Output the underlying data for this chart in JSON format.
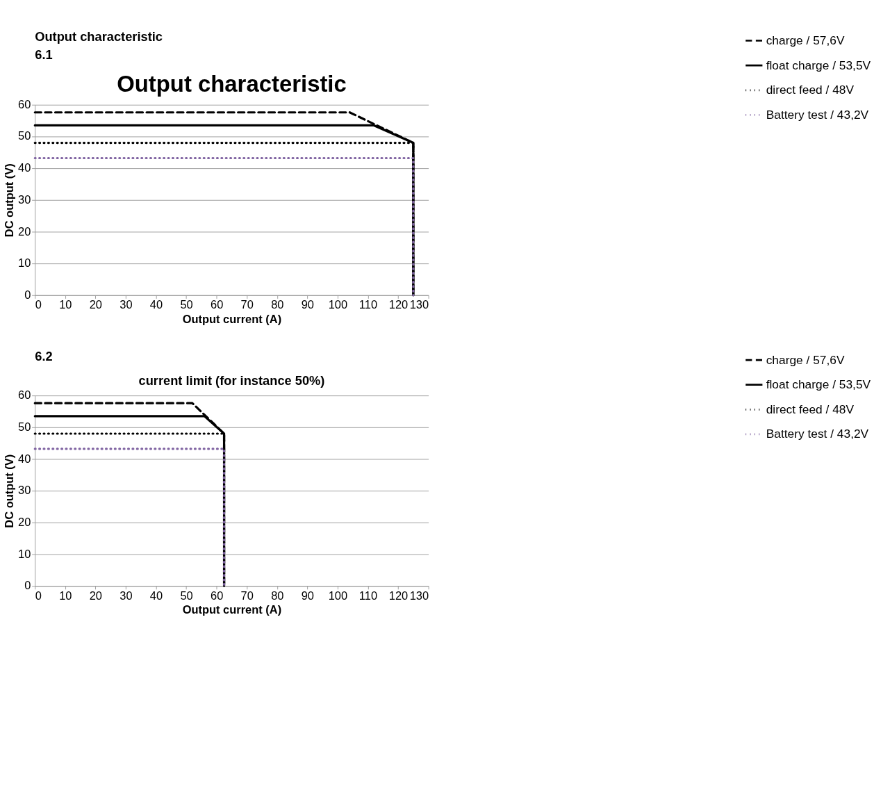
{
  "chart_data": [
    {
      "type": "line",
      "title": "Output characteristic",
      "xlabel": "Output current (A)",
      "ylabel": "DC output (V)",
      "annotations": [
        "Output characteristic",
        "6.1"
      ],
      "xlim": [
        0,
        130
      ],
      "xticks": [
        0,
        10,
        20,
        30,
        40,
        50,
        60,
        70,
        80,
        90,
        100,
        110,
        120,
        130
      ],
      "ylim": [
        0,
        60
      ],
      "yticks": [
        0,
        10,
        20,
        30,
        40,
        50,
        60
      ],
      "grid": "y",
      "legend": "right",
      "series": [
        {
          "name": "charge / 57,6V",
          "color": "#000000",
          "line_style": "dashed",
          "x": [
            0,
            104,
            125,
            125
          ],
          "values": [
            57.6,
            57.6,
            48,
            0
          ]
        },
        {
          "name": "float charge / 53,5V",
          "color": "#000000",
          "line_style": "solid",
          "x": [
            0,
            112,
            125,
            125
          ],
          "values": [
            53.5,
            53.5,
            48,
            0
          ]
        },
        {
          "name": "direct feed / 48V",
          "color": "#000000",
          "line_style": "dotted",
          "x": [
            0,
            125,
            125
          ],
          "values": [
            48,
            48,
            0
          ]
        },
        {
          "name": "Battery test / 43,2V",
          "color": "#8064a2",
          "line_style": "dotted",
          "x": [
            0,
            125,
            125
          ],
          "values": [
            43.2,
            43.2,
            0
          ]
        }
      ]
    },
    {
      "type": "line",
      "title": "current limit (for instance 50%)",
      "xlabel": "Output current (A)",
      "ylabel": "DC output (V)",
      "annotations": [
        "6.2"
      ],
      "xlim": [
        0,
        130
      ],
      "xticks": [
        0,
        10,
        20,
        30,
        40,
        50,
        60,
        70,
        80,
        90,
        100,
        110,
        120,
        130
      ],
      "ylim": [
        0,
        60
      ],
      "yticks": [
        0,
        10,
        20,
        30,
        40,
        50,
        60
      ],
      "grid": "y",
      "legend": "right",
      "series": [
        {
          "name": "charge / 57,6V",
          "color": "#000000",
          "line_style": "dashed",
          "x": [
            0,
            52,
            62.5,
            62.5
          ],
          "values": [
            57.6,
            57.6,
            48,
            0
          ]
        },
        {
          "name": "float charge / 53,5V",
          "color": "#000000",
          "line_style": "solid",
          "x": [
            0,
            56,
            62.5,
            62.5
          ],
          "values": [
            53.5,
            53.5,
            48,
            0
          ]
        },
        {
          "name": "direct feed / 48V",
          "color": "#000000",
          "line_style": "dotted",
          "x": [
            0,
            62.5,
            62.5
          ],
          "values": [
            48,
            48,
            0
          ]
        },
        {
          "name": "Battery test / 43,2V",
          "color": "#8064a2",
          "line_style": "dotted",
          "x": [
            0,
            62.5,
            62.5
          ],
          "values": [
            43.2,
            43.2,
            0
          ]
        }
      ]
    }
  ]
}
